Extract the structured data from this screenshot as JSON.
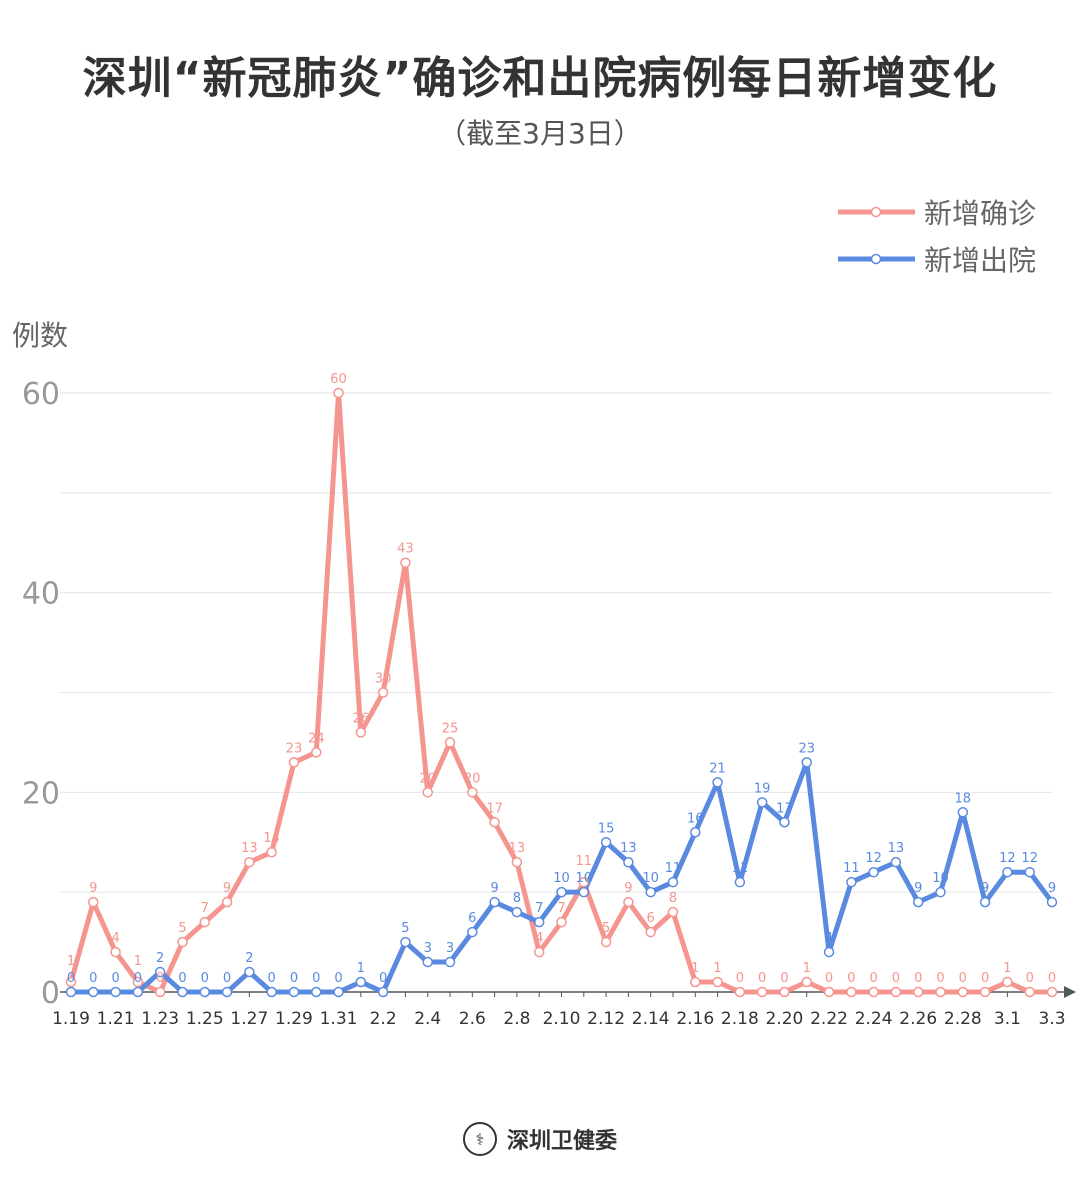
{
  "title": "深圳“新冠肺炎”确诊和出院病例每日新增变化",
  "subtitle": "（截至3月3日）",
  "footer": {
    "source": "深圳卫健委",
    "logo_icon": "shenzhen-health-commission-emblem"
  },
  "chart_data": {
    "type": "line",
    "title": "深圳“新冠肺炎”确诊和出院病例每日新增变化",
    "subtitle": "（截至3月3日）",
    "ylabel": "例数",
    "xlabel": "",
    "ylim": [
      0,
      60
    ],
    "yticks": [
      0,
      20,
      40,
      60
    ],
    "grid": true,
    "legend": "top-right",
    "x": [
      "1.19",
      "1.20",
      "1.21",
      "1.22",
      "1.23",
      "1.24",
      "1.25",
      "1.26",
      "1.27",
      "1.28",
      "1.29",
      "1.30",
      "1.31",
      "2.1",
      "2.2",
      "2.3",
      "2.4",
      "2.5",
      "2.6",
      "2.7",
      "2.8",
      "2.9",
      "2.10",
      "2.11",
      "2.12",
      "2.13",
      "2.14",
      "2.15",
      "2.16",
      "2.17",
      "2.18",
      "2.19",
      "2.20",
      "2.21",
      "2.22",
      "2.23",
      "2.24",
      "2.25",
      "2.26",
      "2.27",
      "2.28",
      "2.29",
      "3.1",
      "3.2",
      "3.3"
    ],
    "xtick_labels": [
      "1.19",
      "1.21",
      "1.23",
      "1.25",
      "1.27",
      "1.29",
      "1.31",
      "2.2",
      "2.4",
      "2.6",
      "2.8",
      "2.10",
      "2.12",
      "2.14",
      "2.16",
      "2.18",
      "2.20",
      "2.22",
      "2.24",
      "2.26",
      "2.28",
      "3.1",
      "3.3"
    ],
    "series": [
      {
        "name": "新增确诊",
        "color": "#f4958f",
        "values": [
          1,
          9,
          4,
          1,
          0,
          5,
          7,
          9,
          13,
          14,
          23,
          24,
          60,
          26,
          30,
          43,
          20,
          25,
          20,
          17,
          13,
          4,
          7,
          11,
          5,
          9,
          6,
          8,
          1,
          1,
          0,
          0,
          0,
          1,
          0,
          0,
          0,
          0,
          0,
          0,
          0,
          0,
          1,
          0,
          0
        ]
      },
      {
        "name": "新增出院",
        "color": "#5a8ae0",
        "values": [
          0,
          0,
          0,
          0,
          2,
          0,
          0,
          0,
          2,
          0,
          0,
          0,
          0,
          1,
          0,
          5,
          3,
          3,
          6,
          9,
          8,
          7,
          10,
          10,
          15,
          13,
          10,
          11,
          16,
          21,
          11,
          19,
          17,
          23,
          4,
          11,
          12,
          13,
          9,
          10,
          18,
          9,
          12,
          12,
          9
        ]
      }
    ]
  }
}
